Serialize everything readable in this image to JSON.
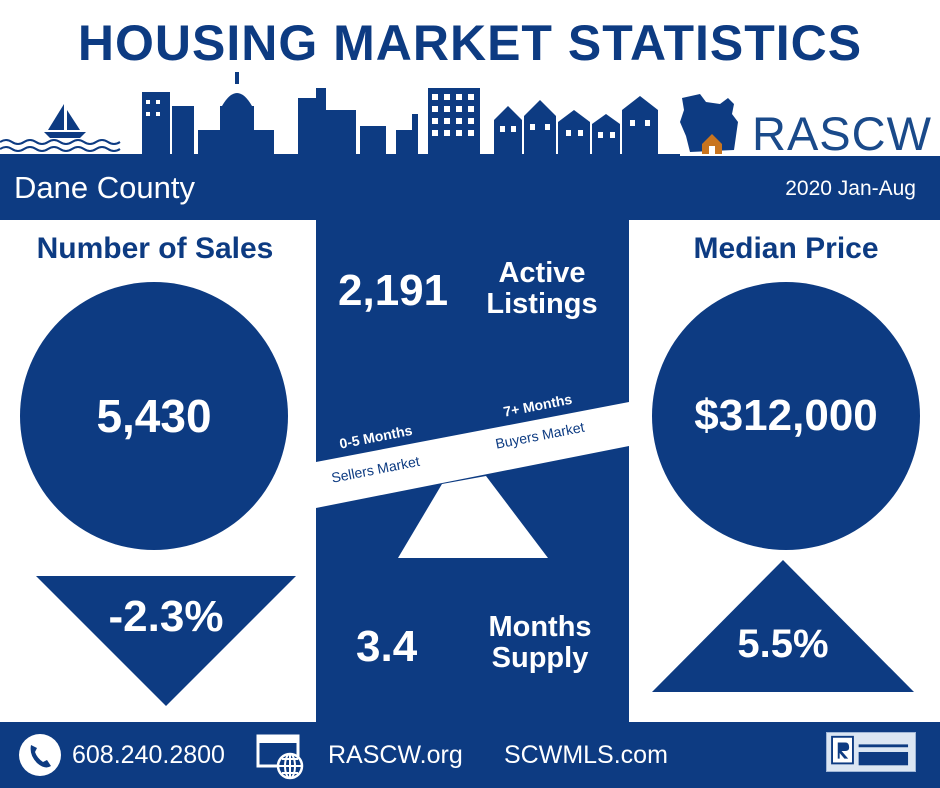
{
  "header": {
    "title": "HOUSING MARKET STATISTICS",
    "logo_text": "RASCW"
  },
  "region_bar": {
    "region": "Dane County",
    "period": "2020 Jan-Aug"
  },
  "sales": {
    "heading": "Number of Sales",
    "value": "5,430",
    "change": "-2.3%",
    "direction": "down"
  },
  "active": {
    "value": "2,191",
    "label_line1": "Active",
    "label_line2": "Listings"
  },
  "market_balance": {
    "seller_range": "0-5 Months",
    "seller_label": "Sellers Market",
    "buyer_range": "7+ Months",
    "buyer_label": "Buyers Market"
  },
  "supply": {
    "value": "3.4",
    "label_line1": "Months",
    "label_line2": "Supply"
  },
  "price": {
    "heading": "Median Price",
    "value": "$312,000",
    "change": "5.5%",
    "direction": "up"
  },
  "footer": {
    "phone": "608.240.2800",
    "site1": "RASCW.org",
    "site2": "SCWMLS.com",
    "icons": [
      "phone-icon",
      "web-browser-icon",
      "realtor-mls-logo"
    ]
  },
  "colors": {
    "navy": "#0d3b82",
    "white": "#ffffff",
    "house_orange": "#c8741e"
  }
}
